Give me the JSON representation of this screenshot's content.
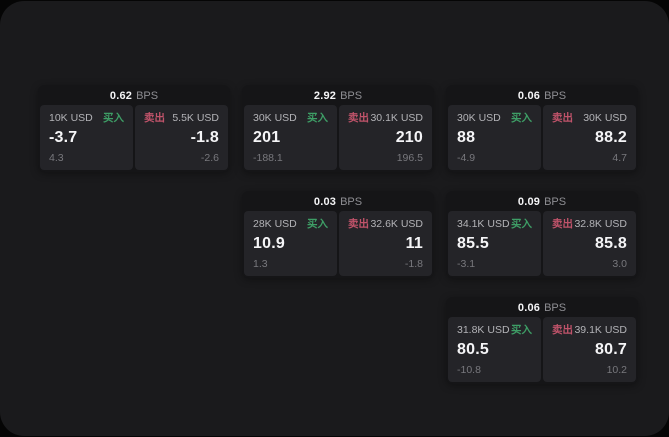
{
  "colors": {
    "page_bg": "#050505",
    "panel_bg": "#1a1a1c",
    "card_bg": "#151517",
    "tile_bg": "#242428",
    "text_primary": "#f5f5f7",
    "text_label": "#b3b3b7",
    "text_dim": "#78787d",
    "text_unit": "#8e8e93",
    "buy_green": "#3e9e66",
    "sell_red": "#c0536a"
  },
  "labels": {
    "bps_unit": "BPS",
    "buy": "买入",
    "sell": "卖出"
  },
  "cards": [
    {
      "bps": "0.62",
      "row": 1,
      "col": 1,
      "buy": {
        "amount": "10K USD",
        "value": "-3.7",
        "delta": "4.3"
      },
      "sell": {
        "amount": "5.5K USD",
        "value": "-1.8",
        "delta": "-2.6"
      }
    },
    {
      "bps": "2.92",
      "row": 1,
      "col": 2,
      "buy": {
        "amount": "30K USD",
        "value": "201",
        "delta": "-188.1"
      },
      "sell": {
        "amount": "30.1K USD",
        "value": "210",
        "delta": "196.5"
      }
    },
    {
      "bps": "0.06",
      "row": 1,
      "col": 3,
      "buy": {
        "amount": "30K USD",
        "value": "88",
        "delta": "-4.9"
      },
      "sell": {
        "amount": "30K USD",
        "value": "88.2",
        "delta": "4.7"
      }
    },
    {
      "bps": "0.03",
      "row": 2,
      "col": 2,
      "buy": {
        "amount": "28K USD",
        "value": "10.9",
        "delta": "1.3"
      },
      "sell": {
        "amount": "32.6K USD",
        "value": "11",
        "delta": "-1.8"
      }
    },
    {
      "bps": "0.09",
      "row": 2,
      "col": 3,
      "buy": {
        "amount": "34.1K USD",
        "value": "85.5",
        "delta": "-3.1"
      },
      "sell": {
        "amount": "32.8K USD",
        "value": "85.8",
        "delta": "3.0"
      }
    },
    {
      "bps": "0.06",
      "row": 3,
      "col": 3,
      "buy": {
        "amount": "31.8K USD",
        "value": "80.5",
        "delta": "-10.8"
      },
      "sell": {
        "amount": "39.1K USD",
        "value": "80.7",
        "delta": "10.2"
      }
    }
  ]
}
